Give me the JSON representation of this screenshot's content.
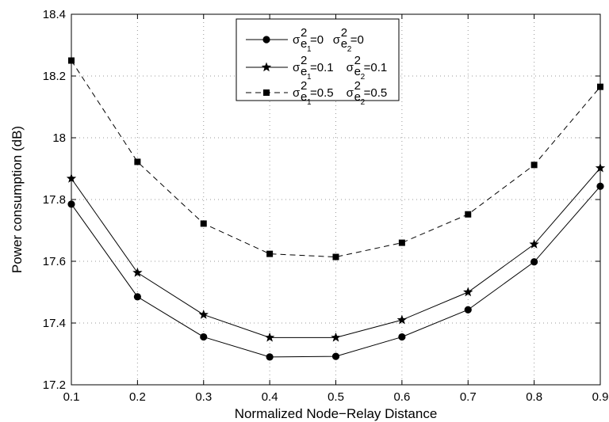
{
  "chart_data": {
    "type": "line",
    "title": "",
    "xlabel": "Normalized Node−Relay Distance",
    "ylabel": "Power consumption (dB)",
    "xlim": [
      0.1,
      0.9
    ],
    "ylim": [
      17.2,
      18.4
    ],
    "grid": true,
    "legend_position": "top-center",
    "xticks": [
      "0.1",
      "0.2",
      "0.3",
      "0.4",
      "0.5",
      "0.6",
      "0.7",
      "0.8",
      "0.9"
    ],
    "yticks": [
      "17.2",
      "17.4",
      "17.6",
      "17.8",
      "18",
      "18.2",
      "18.4"
    ],
    "x": [
      0.1,
      0.2,
      0.3,
      0.4,
      0.5,
      0.6,
      0.7,
      0.8,
      0.9
    ],
    "series": [
      {
        "legend": {
          "var1_value": "=0",
          "var2_value": "=0"
        },
        "marker": "circle",
        "line_style": "solid",
        "values": [
          17.785,
          17.485,
          17.355,
          17.29,
          17.292,
          17.355,
          17.443,
          17.598,
          17.843
        ]
      },
      {
        "legend": {
          "var1_value": "=0.1",
          "var2_value": "=0.1"
        },
        "marker": "star",
        "line_style": "solid",
        "values": [
          17.868,
          17.563,
          17.427,
          17.353,
          17.353,
          17.41,
          17.5,
          17.655,
          17.902
        ]
      },
      {
        "legend": {
          "var1_value": "=0.5",
          "var2_value": "=0.5"
        },
        "marker": "square",
        "line_style": "dashed",
        "values": [
          18.25,
          17.922,
          17.722,
          17.624,
          17.614,
          17.66,
          17.752,
          17.912,
          18.165
        ]
      }
    ],
    "legend_symbols": {
      "sigma": "σ",
      "e": "e",
      "squared": "2",
      "sub1": "1",
      "sub2": "2"
    },
    "colors": {
      "line": "#000000",
      "grid": "#9a9a9a",
      "background": "#ffffff"
    }
  }
}
